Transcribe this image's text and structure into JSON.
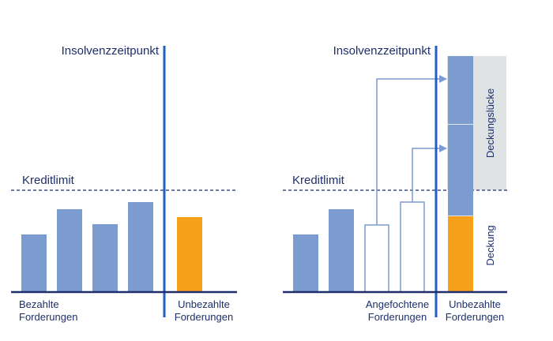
{
  "colors": {
    "navy": "#1e2f6b",
    "blue_line": "#1f5fc1",
    "bar_blue": "#7c9bcf",
    "outline_blue": "#7c9bcf",
    "orange": "#f7a11a",
    "gap_grey": "#dfe3e3"
  },
  "left_panel": {
    "insolvency_label": "Insolvenzzeitpunkt",
    "credit_limit_label": "Kreditlimit",
    "paid_label_line1": "Bezahlte",
    "paid_label_line2": "Forderungen",
    "unpaid_label_line1": "Unbezahlte",
    "unpaid_label_line2": "Forderungen"
  },
  "right_panel": {
    "insolvency_label": "Insolvenzzeitpunkt",
    "credit_limit_label": "Kreditlimit",
    "contested_label_line1": "Angefochtene",
    "contested_label_line2": "Forderungen",
    "unpaid_label_line1": "Unbezahlte",
    "unpaid_label_line2": "Forderungen",
    "coverage_gap_label": "Deckungslücke",
    "coverage_label": "Deckung"
  }
}
